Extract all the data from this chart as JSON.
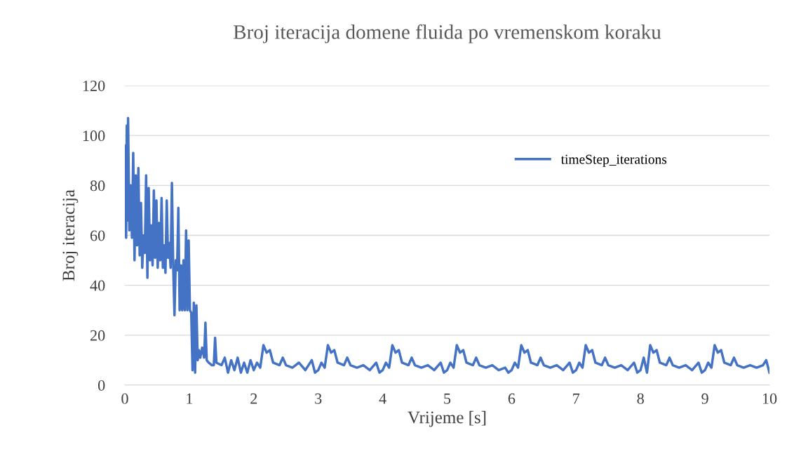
{
  "chart_data": {
    "type": "line",
    "title": "Broj iteracija domene fluida po vremenskom koraku",
    "xlabel": "Vrijeme [s]",
    "ylabel": "Broj iteracija",
    "xlim": [
      0,
      10
    ],
    "xticks": [
      0,
      1,
      2,
      3,
      4,
      5,
      6,
      7,
      8,
      9,
      10
    ],
    "ylim": [
      0,
      120
    ],
    "yticks": [
      0,
      20,
      40,
      60,
      80,
      100,
      120
    ],
    "grid": "y",
    "legend": "right",
    "marker": "none",
    "line_style": "solid",
    "series": [
      {
        "name": "timeStep_iterations",
        "color": "#4472c4",
        "x": [
          0.0,
          0.01,
          0.02,
          0.03,
          0.04,
          0.05,
          0.07,
          0.09,
          0.11,
          0.13,
          0.15,
          0.17,
          0.19,
          0.21,
          0.23,
          0.25,
          0.27,
          0.29,
          0.31,
          0.33,
          0.35,
          0.37,
          0.39,
          0.41,
          0.43,
          0.45,
          0.47,
          0.49,
          0.51,
          0.53,
          0.55,
          0.57,
          0.59,
          0.61,
          0.63,
          0.65,
          0.67,
          0.69,
          0.71,
          0.73,
          0.75,
          0.77,
          0.79,
          0.81,
          0.83,
          0.85,
          0.87,
          0.89,
          0.91,
          0.93,
          0.95,
          0.97,
          0.99,
          1.01,
          1.03,
          1.05,
          1.07,
          1.09,
          1.11,
          1.13,
          1.15,
          1.17,
          1.2,
          1.23,
          1.25,
          1.27,
          1.3,
          1.35,
          1.38,
          1.4,
          1.42,
          1.5,
          1.55,
          1.6,
          1.65,
          1.7,
          1.75,
          1.8,
          1.85,
          1.9,
          1.95,
          2.0,
          2.05,
          2.1,
          2.15,
          2.2,
          2.25,
          2.3,
          2.4,
          2.45,
          2.5,
          2.6,
          2.7,
          2.8,
          2.9,
          2.95,
          3.0,
          3.05,
          3.1,
          3.15,
          3.2,
          3.25,
          3.3,
          3.4,
          3.45,
          3.5,
          3.6,
          3.7,
          3.8,
          3.9,
          3.95,
          4.0,
          4.05,
          4.1,
          4.15,
          4.2,
          4.25,
          4.3,
          4.4,
          4.45,
          4.5,
          4.6,
          4.7,
          4.8,
          4.9,
          4.95,
          5.0,
          5.05,
          5.1,
          5.15,
          5.2,
          5.25,
          5.3,
          5.4,
          5.45,
          5.5,
          5.6,
          5.7,
          5.8,
          5.9,
          5.95,
          6.0,
          6.05,
          6.1,
          6.15,
          6.2,
          6.25,
          6.3,
          6.4,
          6.45,
          6.5,
          6.6,
          6.7,
          6.8,
          6.9,
          6.95,
          7.0,
          7.05,
          7.1,
          7.15,
          7.2,
          7.25,
          7.3,
          7.4,
          7.45,
          7.5,
          7.6,
          7.7,
          7.8,
          7.9,
          7.95,
          8.0,
          8.05,
          8.1,
          8.15,
          8.2,
          8.25,
          8.3,
          8.4,
          8.45,
          8.5,
          8.6,
          8.7,
          8.8,
          8.9,
          8.95,
          9.0,
          9.05,
          9.1,
          9.15,
          9.2,
          9.25,
          9.3,
          9.4,
          9.45,
          9.5,
          9.6,
          9.7,
          9.8,
          9.9,
          9.95,
          10.0
        ],
        "values": [
          60,
          96,
          59,
          104,
          66,
          107,
          62,
          80,
          59,
          93,
          50,
          84,
          56,
          87,
          52,
          73,
          47,
          60,
          53,
          84,
          43,
          79,
          50,
          64,
          48,
          78,
          51,
          74,
          47,
          65,
          50,
          75,
          47,
          56,
          45,
          74,
          51,
          57,
          47,
          81,
          48,
          28,
          50,
          46,
          71,
          30,
          48,
          30,
          50,
          30,
          62,
          30,
          58,
          30,
          29,
          6,
          33,
          5,
          32,
          10,
          14,
          11,
          15,
          11,
          25,
          10,
          9,
          8,
          8,
          19,
          9,
          8,
          11,
          5,
          10,
          6,
          11,
          5,
          9,
          5,
          10,
          6,
          9,
          7,
          16,
          13,
          14,
          9,
          8,
          11,
          8,
          7,
          9,
          6,
          10,
          5,
          6,
          9,
          7,
          16,
          13,
          14,
          9,
          8,
          11,
          8,
          7,
          8,
          6,
          9,
          5,
          6,
          9,
          7,
          16,
          13,
          14,
          9,
          8,
          11,
          8,
          7,
          8,
          6,
          9,
          5,
          6,
          9,
          7,
          16,
          13,
          14,
          9,
          8,
          11,
          8,
          7,
          8,
          6,
          7,
          5,
          6,
          9,
          7,
          16,
          13,
          14,
          9,
          8,
          11,
          8,
          7,
          8,
          6,
          9,
          5,
          6,
          9,
          7,
          16,
          13,
          14,
          9,
          8,
          11,
          8,
          7,
          8,
          6,
          9,
          5,
          6,
          11,
          5,
          16,
          13,
          14,
          9,
          8,
          11,
          8,
          7,
          8,
          6,
          9,
          5,
          6,
          9,
          7,
          16,
          13,
          14,
          9,
          8,
          11,
          8,
          7,
          8,
          7,
          8,
          10,
          5
        ]
      }
    ]
  }
}
